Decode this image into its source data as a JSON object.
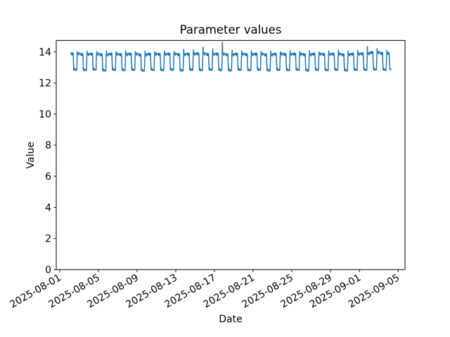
{
  "chart_data": {
    "type": "line",
    "title": "Parameter values",
    "xlabel": "Date",
    "ylabel": "Value",
    "grid": false,
    "legend": "none",
    "line_color": "#1f77b4",
    "axis_color": "#000000",
    "background_color": "#ffffff",
    "x_epoch": "2025-08-01",
    "xlim_days": [
      -0.36,
      35.71
    ],
    "ylim": [
      0,
      14.73
    ],
    "yticks": [
      0,
      2,
      4,
      6,
      8,
      10,
      12,
      14
    ],
    "xticks": [
      {
        "day": 0,
        "label": "2025-08-01"
      },
      {
        "day": 4,
        "label": "2025-08-05"
      },
      {
        "day": 8,
        "label": "2025-08-09"
      },
      {
        "day": 12,
        "label": "2025-08-13"
      },
      {
        "day": 16,
        "label": "2025-08-17"
      },
      {
        "day": 20,
        "label": "2025-08-21"
      },
      {
        "day": 24,
        "label": "2025-08-25"
      },
      {
        "day": 28,
        "label": "2025-08-29"
      },
      {
        "day": 31,
        "label": "2025-09-01"
      },
      {
        "day": 35,
        "label": "2025-09-05"
      }
    ],
    "series": {
      "description": "daily oscillation: high plateau ~13.9, dip to ~12.8, overshoot spike on recovery",
      "start_day": 1.15,
      "period_days": 1,
      "cycle_shape": [
        [
          0.0,
          "h",
          0
        ],
        [
          0.05,
          "h",
          -0.1
        ],
        [
          0.08,
          "h",
          0.02
        ],
        [
          0.12,
          "h",
          -0.13
        ],
        [
          0.16,
          "h",
          0.01
        ],
        [
          0.24,
          "h",
          0
        ],
        [
          0.265,
          "l",
          0.6
        ],
        [
          0.3,
          "l",
          0.03
        ],
        [
          0.36,
          "l",
          0.15
        ],
        [
          0.42,
          "l",
          0
        ],
        [
          0.49,
          "l",
          0.07
        ],
        [
          0.56,
          "l",
          0
        ],
        [
          0.61,
          "l",
          0.03
        ],
        [
          0.645,
          "l",
          0.75
        ],
        [
          0.675,
          "s",
          0
        ],
        [
          0.7,
          "h",
          0.03
        ],
        [
          0.76,
          "h",
          -0.02
        ],
        [
          0.82,
          "h",
          -0.13
        ],
        [
          0.86,
          "h",
          0.02
        ],
        [
          0.93,
          "h",
          -0.04
        ]
      ],
      "cycles_high_low_spike": [
        [
          13.92,
          12.8,
          14.0
        ],
        [
          13.88,
          12.78,
          14.05
        ],
        [
          13.9,
          12.82,
          14.02
        ],
        [
          13.86,
          12.76,
          14.05
        ],
        [
          13.9,
          12.8,
          14.0
        ],
        [
          13.87,
          12.78,
          14.08
        ],
        [
          13.9,
          12.8,
          14.02
        ],
        [
          13.85,
          12.75,
          14.05
        ],
        [
          13.9,
          12.8,
          14.0
        ],
        [
          13.88,
          12.78,
          14.06
        ],
        [
          13.9,
          12.8,
          14.02
        ],
        [
          13.87,
          12.76,
          14.15
        ],
        [
          13.9,
          12.8,
          14.12
        ],
        [
          13.92,
          12.78,
          14.3
        ],
        [
          13.88,
          12.8,
          14.2
        ],
        [
          13.9,
          12.78,
          14.62
        ],
        [
          13.86,
          12.76,
          14.1
        ],
        [
          13.9,
          12.8,
          14.05
        ],
        [
          13.87,
          12.78,
          14.08
        ],
        [
          13.9,
          12.8,
          14.02
        ],
        [
          13.85,
          12.76,
          14.05
        ],
        [
          13.9,
          12.8,
          14.0
        ],
        [
          13.88,
          12.78,
          14.06
        ],
        [
          13.9,
          12.8,
          14.02
        ],
        [
          13.86,
          12.76,
          14.08
        ],
        [
          13.9,
          12.8,
          14.0
        ],
        [
          13.88,
          12.78,
          14.05
        ],
        [
          13.9,
          12.8,
          14.1
        ],
        [
          13.86,
          12.76,
          14.05
        ],
        [
          13.9,
          12.8,
          14.08
        ],
        [
          13.92,
          12.8,
          14.35
        ],
        [
          14.0,
          12.82,
          14.2
        ],
        [
          13.95,
          12.8,
          14.1
        ]
      ],
      "tail_points": [
        [
          34.11,
          13.2
        ],
        [
          34.15,
          12.88
        ],
        [
          34.21,
          12.83
        ],
        [
          34.25,
          12.88
        ]
      ]
    }
  }
}
